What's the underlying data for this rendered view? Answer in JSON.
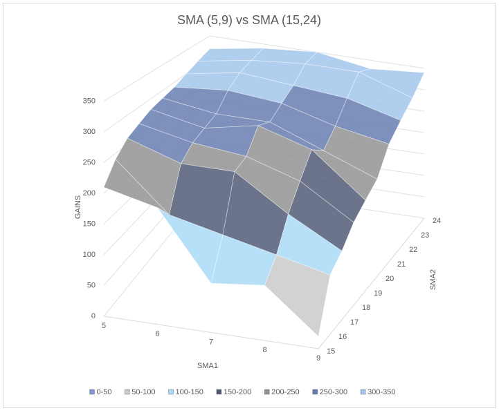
{
  "chart_data": {
    "type": "surface",
    "title": "SMA (5,9) vs SMA (15,24)",
    "x_label": "SMA1",
    "y_label": "SMA2",
    "z_label": "GAINS",
    "x": [
      5,
      6,
      7,
      8,
      9
    ],
    "y": [
      15,
      16,
      17,
      18,
      19,
      20,
      21,
      22,
      23,
      24
    ],
    "values": [
      [
        210,
        240,
        260,
        270,
        280,
        285,
        290,
        300,
        310,
        320
      ],
      [
        190,
        160,
        230,
        250,
        260,
        270,
        300,
        320,
        330,
        340
      ],
      [
        80,
        140,
        230,
        240,
        280,
        270,
        290,
        310,
        340,
        350
      ],
      [
        90,
        120,
        170,
        210,
        250,
        230,
        260,
        300,
        340,
        330
      ],
      [
        20,
        100,
        120,
        150,
        170,
        190,
        240,
        270,
        300,
        340
      ]
    ],
    "zlim": [
      0,
      350
    ],
    "zticks": [
      0,
      50,
      100,
      150,
      200,
      250,
      300,
      350
    ],
    "series": [
      {
        "name": "0-50",
        "color": "#7f96d4"
      },
      {
        "name": "50-100",
        "color": "#c8c8c8"
      },
      {
        "name": "100-150",
        "color": "#a6d8f7"
      },
      {
        "name": "150-200",
        "color": "#4c5671"
      },
      {
        "name": "200-250",
        "color": "#8f8f8f"
      },
      {
        "name": "250-300",
        "color": "#6179ad"
      },
      {
        "name": "300-350",
        "color": "#9fc3ea"
      }
    ],
    "grid": true
  }
}
